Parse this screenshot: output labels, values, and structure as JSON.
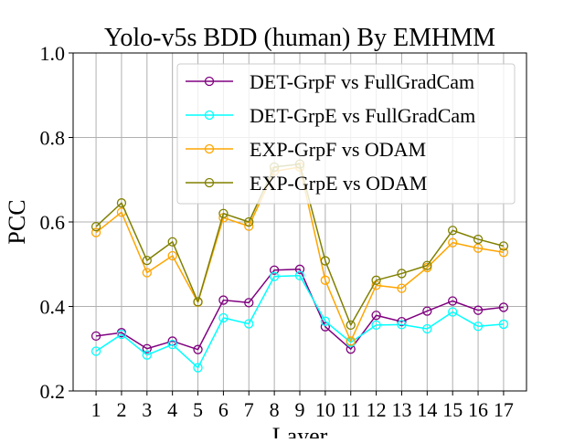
{
  "chart_data": {
    "type": "line",
    "title": "Yolo-v5s BDD (human) By EMHMM",
    "xlabel": "Layer",
    "ylabel": "PCC",
    "x": [
      1,
      2,
      3,
      4,
      5,
      6,
      7,
      8,
      9,
      10,
      11,
      12,
      13,
      14,
      15,
      16,
      17
    ],
    "xticks": [
      "1",
      "2",
      "3",
      "4",
      "5",
      "6",
      "7",
      "8",
      "9",
      "10",
      "11",
      "12",
      "13",
      "14",
      "15",
      "16",
      "17"
    ],
    "ylim": [
      0.2,
      1.0
    ],
    "yticks": [
      "0.2",
      "0.4",
      "0.6",
      "0.8",
      "1.0"
    ],
    "grid": true,
    "legend_position": "upper right",
    "marker": "hollow circle",
    "series": [
      {
        "name": "DET-GrpF vs FullGradCam",
        "color": "#800080",
        "values": [
          0.33,
          0.338,
          0.3,
          0.318,
          0.298,
          0.415,
          0.409,
          0.486,
          0.488,
          0.352,
          0.299,
          0.379,
          0.364,
          0.389,
          0.413,
          0.391,
          0.398
        ]
      },
      {
        "name": "DET-GrpE vs FullGradCam",
        "color": "#00ffff",
        "values": [
          0.294,
          0.334,
          0.285,
          0.31,
          0.255,
          0.373,
          0.359,
          0.471,
          0.473,
          0.365,
          0.315,
          0.356,
          0.357,
          0.347,
          0.387,
          0.353,
          0.358
        ]
      },
      {
        "name": "EXP-GrpF vs ODAM",
        "color": "#ffa500",
        "values": [
          0.575,
          0.623,
          0.48,
          0.52,
          0.41,
          0.61,
          0.59,
          0.72,
          0.73,
          0.462,
          0.318,
          0.45,
          0.443,
          0.492,
          0.551,
          0.538,
          0.528
        ]
      },
      {
        "name": "EXP-GrpE vs ODAM",
        "color": "#808000",
        "values": [
          0.589,
          0.645,
          0.509,
          0.553,
          0.411,
          0.62,
          0.6,
          0.73,
          0.737,
          0.508,
          0.356,
          0.462,
          0.478,
          0.497,
          0.58,
          0.559,
          0.543
        ]
      }
    ]
  }
}
